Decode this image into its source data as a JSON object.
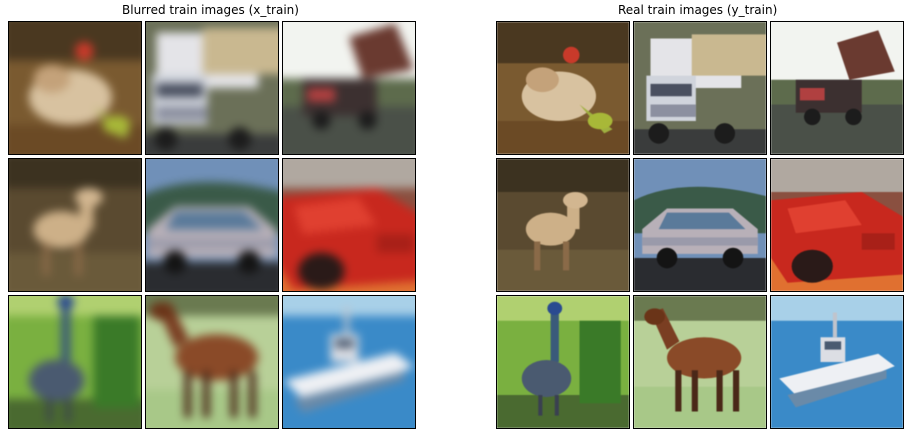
{
  "panels": [
    {
      "title": "Blurred train images (x_train)",
      "style": "blurred"
    },
    {
      "title": "Real train images (y_train)",
      "style": "sharp"
    }
  ],
  "images": [
    "frog-image",
    "truck-image",
    "dump-truck-image",
    "deer-image",
    "car-image",
    "red-car-image",
    "bird-image",
    "horse-image",
    "boat-image"
  ]
}
